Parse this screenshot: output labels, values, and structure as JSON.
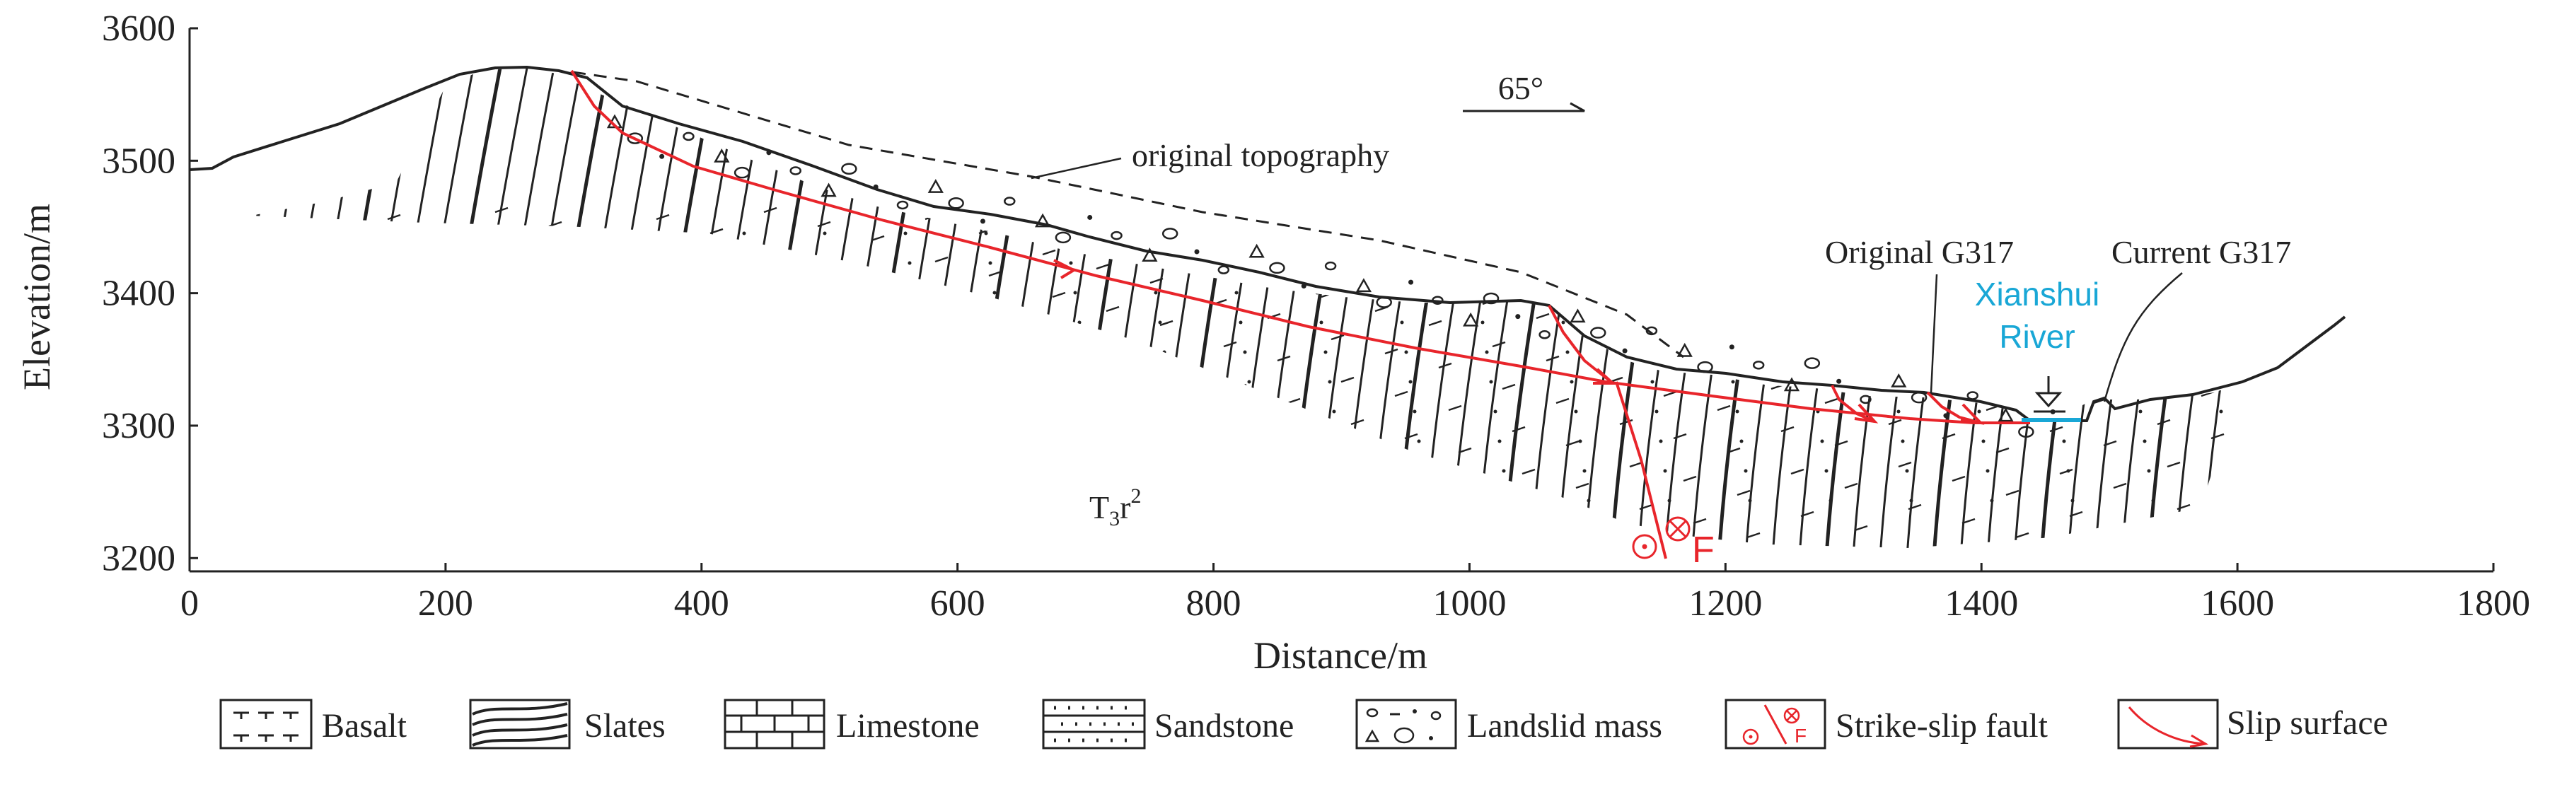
{
  "axes": {
    "x_title": "Distance/m",
    "y_title": "Elevation/m",
    "x_ticks": [
      "0",
      "200",
      "400",
      "600",
      "800",
      "1000",
      "1200",
      "1400",
      "1600",
      "1800"
    ],
    "y_ticks": [
      "3200",
      "3300",
      "3400",
      "3500",
      "3600"
    ],
    "x_range": [
      0,
      1800
    ],
    "y_range": [
      3190,
      3600
    ]
  },
  "annotations": {
    "azimuth": "65°",
    "original_topography": "original topography",
    "original_road": "Original G317",
    "current_road": "Current G317",
    "river_line1": "Xianshui",
    "river_line2": "River",
    "formation_main": "T",
    "formation_sub": "3",
    "formation_mid": "r",
    "formation_sup": "2",
    "fault_label": "F"
  },
  "legend": [
    {
      "label": "Basalt",
      "icon": "basalt-pattern-icon"
    },
    {
      "label": "Slates",
      "icon": "slates-pattern-icon"
    },
    {
      "label": "Limestone",
      "icon": "limestone-pattern-icon"
    },
    {
      "label": "Sandstone",
      "icon": "sandstone-pattern-icon"
    },
    {
      "label": "Landslid mass",
      "icon": "landslid-mass-pattern-icon"
    },
    {
      "label": "Strike-slip fault",
      "icon": "strike-slip-fault-icon"
    },
    {
      "label": "Slip surface",
      "icon": "slip-surface-icon"
    }
  ],
  "colors": {
    "fault_red": "#e8252b",
    "river_blue": "#19a7d6",
    "line": "#222222"
  }
}
